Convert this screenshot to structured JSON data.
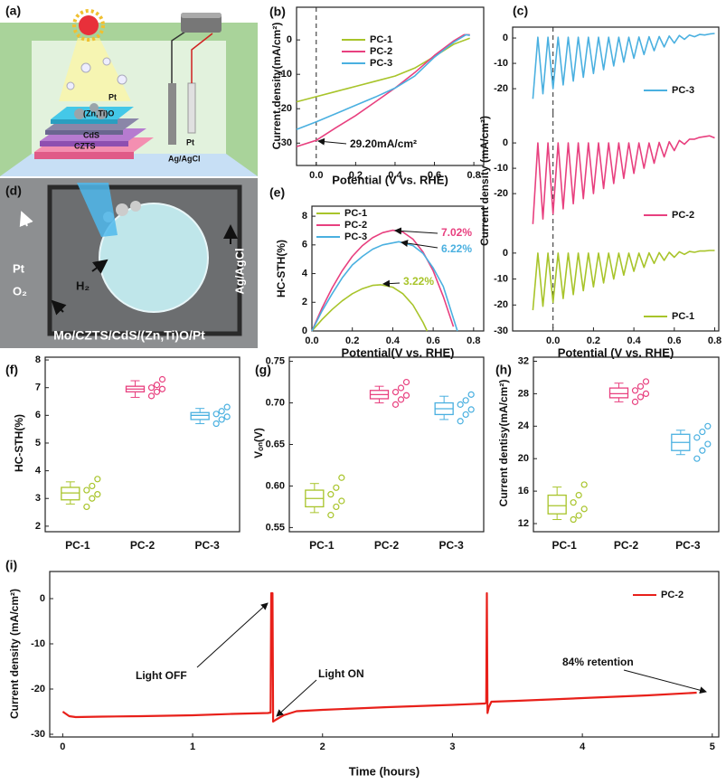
{
  "figure_a": {
    "panel_label": "(a)",
    "labels": [
      "Pt",
      "(Zn,Ti)O",
      "CdS",
      "CZTS",
      "Pt",
      "Ag/AgCl"
    ]
  },
  "figure_d": {
    "panel_label": "(d)",
    "labels": [
      "Pt",
      "H₂",
      "O₂",
      "Ag/AgCl",
      "Mo/CZTS/CdS/(Zn,Ti)O/Pt"
    ]
  },
  "chart_data": [
    {
      "type": "line",
      "panel_label": "(b)",
      "xlabel": "Potential (V vs. RHE)",
      "ylabel": "Current density(mA/cm²)",
      "xlim": [
        -0.1,
        0.85
      ],
      "ylim": [
        -36.5,
        9.5
      ],
      "xticks": [
        {
          "value": 0,
          "label": "0.0"
        },
        0.2,
        0.4,
        0.6,
        0.8
      ],
      "yticks": [
        -30,
        -20,
        -10,
        0
      ],
      "ref_line_x": 0,
      "legend": "upper left",
      "series": [
        {
          "name": "PC-1",
          "color": "#a8c42a",
          "x": [
            -0.1,
            0,
            0.1,
            0.2,
            0.3,
            0.4,
            0.5,
            0.6,
            0.7,
            0.78
          ],
          "values": [
            -18,
            -16.5,
            -15,
            -13.5,
            -12,
            -10.5,
            -8.2,
            -4.8,
            -1.2,
            0.5
          ]
        },
        {
          "name": "PC-2",
          "color": "#e8407f",
          "x": [
            -0.1,
            0,
            0.1,
            0.2,
            0.3,
            0.4,
            0.5,
            0.6,
            0.7,
            0.75,
            0.78
          ],
          "values": [
            -31,
            -29.2,
            -25.5,
            -22,
            -18,
            -14,
            -9.5,
            -4.5,
            -0.2,
            1.5,
            1.5
          ]
        },
        {
          "name": "PC-3",
          "color": "#4ab0e0",
          "x": [
            -0.1,
            0,
            0.1,
            0.2,
            0.3,
            0.4,
            0.5,
            0.6,
            0.7,
            0.76,
            0.78
          ],
          "values": [
            -26,
            -23.8,
            -21.4,
            -19,
            -16.6,
            -14,
            -10.5,
            -5,
            -0.6,
            1.5,
            1.3
          ]
        }
      ],
      "annotations": [
        {
          "text": "29.20mA/cm²"
        }
      ]
    },
    {
      "type": "line",
      "panel_label": "(e)",
      "xlabel": "Potential(V vs. RHE)",
      "ylabel": "HC-STH(%)",
      "xlim": [
        0,
        0.85
      ],
      "ylim": [
        0,
        8.7
      ],
      "xticks": [
        {
          "value": 0,
          "label": "0.0"
        },
        0.2,
        0.4,
        0.6,
        0.8
      ],
      "yticks": [
        0,
        2,
        4,
        6,
        8
      ],
      "legend": "upper left",
      "series": [
        {
          "name": "PC-1",
          "color": "#a8c42a",
          "x": [
            0,
            0.05,
            0.1,
            0.15,
            0.2,
            0.25,
            0.3,
            0.34,
            0.4,
            0.45,
            0.5,
            0.55,
            0.57
          ],
          "values": [
            0,
            0.8,
            1.5,
            2.1,
            2.6,
            2.95,
            3.18,
            3.22,
            3.05,
            2.6,
            1.8,
            0.6,
            0
          ]
        },
        {
          "name": "PC-2",
          "color": "#e8407f",
          "x": [
            0,
            0.05,
            0.1,
            0.15,
            0.2,
            0.25,
            0.3,
            0.35,
            0.4,
            0.45,
            0.5,
            0.55,
            0.6,
            0.65,
            0.7
          ],
          "values": [
            0,
            1.6,
            3,
            4.2,
            5.2,
            5.95,
            6.5,
            6.85,
            7.02,
            6.9,
            6.4,
            5.5,
            4.2,
            2.4,
            0.3
          ]
        },
        {
          "name": "PC-3",
          "color": "#4ab0e0",
          "x": [
            0,
            0.05,
            0.1,
            0.15,
            0.2,
            0.25,
            0.3,
            0.35,
            0.43,
            0.5,
            0.55,
            0.6,
            0.65,
            0.72
          ],
          "values": [
            0,
            1.4,
            2.6,
            3.7,
            4.6,
            5.2,
            5.7,
            6.0,
            6.22,
            5.95,
            5.4,
            4.4,
            3.1,
            0
          ]
        }
      ],
      "annotations": [
        {
          "text": "7.02%",
          "color": "#e8407f"
        },
        {
          "text": "6.22%",
          "color": "#4ab0e0"
        },
        {
          "text": "3.22%",
          "color": "#a8c42a"
        }
      ]
    },
    {
      "type": "line",
      "panel_label": "(c)",
      "xlim": [
        -0.2,
        0.82
      ],
      "ylim": [
        -29.6,
        4.3
      ],
      "yticks": [
        -20,
        -10,
        0
      ],
      "ref_line_x": 0,
      "legend": "right",
      "x": [
        -0.1,
        -0.075,
        -0.05,
        -0.025,
        0,
        0.025,
        0.05,
        0.075,
        0.1,
        0.125,
        0.15,
        0.175,
        0.2,
        0.225,
        0.25,
        0.275,
        0.3,
        0.325,
        0.35,
        0.375,
        0.4,
        0.425,
        0.45,
        0.475,
        0.5,
        0.525,
        0.55,
        0.575,
        0.6,
        0.625,
        0.65,
        0.675,
        0.7,
        0.725,
        0.75,
        0.775,
        0.8
      ],
      "series": [
        {
          "name": "PC-3",
          "color": "#4ab0e0",
          "values": [
            -24,
            0.3,
            -22,
            0.3,
            -20,
            0.3,
            -18.5,
            0.3,
            -17,
            0.3,
            -15.5,
            0.3,
            -14,
            0.3,
            -12.5,
            0.3,
            -11,
            0.3,
            -9.5,
            0.3,
            -8,
            0.4,
            -6.5,
            0.5,
            -5,
            0.6,
            -3.5,
            0.8,
            -2,
            1,
            -0.5,
            1.2,
            0.5,
            1.4,
            1.2,
            1.6,
            1.8
          ]
        }
      ]
    },
    {
      "type": "line",
      "ylabel": "Current density (mA/cm²)",
      "xlim": [
        -0.2,
        0.82
      ],
      "ylim": [
        -32.8,
        11.8
      ],
      "yticks": [
        -20,
        -10,
        0
      ],
      "ref_line_x": 0,
      "legend": "right",
      "x": [
        -0.1,
        -0.075,
        -0.05,
        -0.025,
        0,
        0.025,
        0.05,
        0.075,
        0.1,
        0.125,
        0.15,
        0.175,
        0.2,
        0.225,
        0.25,
        0.275,
        0.3,
        0.325,
        0.35,
        0.375,
        0.4,
        0.425,
        0.45,
        0.475,
        0.5,
        0.525,
        0.55,
        0.575,
        0.6,
        0.625,
        0.65,
        0.675,
        0.7,
        0.725,
        0.75,
        0.775,
        0.8
      ],
      "series": [
        {
          "name": "PC-2",
          "color": "#e8407f",
          "values": [
            -32,
            0,
            -30,
            0,
            -28,
            0,
            -26,
            0,
            -24,
            0,
            -22,
            0,
            -20,
            0,
            -18,
            0,
            -16,
            0,
            -14,
            0,
            -12,
            0,
            -10,
            0,
            -8,
            0.2,
            -5.5,
            0.5,
            -3,
            1,
            -0.5,
            1.5,
            1.5,
            2.2,
            2.5,
            2.8,
            2
          ]
        }
      ]
    },
    {
      "type": "line",
      "xlabel": "Potential (V vs. RHE)",
      "xlim": [
        -0.2,
        0.82
      ],
      "ylim": [
        -30,
        10.4
      ],
      "xticks": [
        {
          "value": 0,
          "label": "0.0"
        },
        0.2,
        0.4,
        0.6,
        0.8
      ],
      "yticks": [
        -30,
        -20,
        -10,
        0
      ],
      "ref_line_x": 0,
      "legend": "right",
      "x": [
        -0.1,
        -0.075,
        -0.05,
        -0.025,
        0,
        0.025,
        0.05,
        0.075,
        0.1,
        0.125,
        0.15,
        0.175,
        0.2,
        0.225,
        0.25,
        0.275,
        0.3,
        0.325,
        0.35,
        0.375,
        0.4,
        0.425,
        0.45,
        0.475,
        0.5,
        0.525,
        0.55,
        0.575,
        0.6,
        0.625,
        0.65,
        0.675,
        0.7,
        0.725,
        0.75,
        0.775,
        0.8
      ],
      "series": [
        {
          "name": "PC-1",
          "color": "#a8c42a",
          "values": [
            -22,
            0,
            -20.5,
            0,
            -19,
            0,
            -17.5,
            0,
            -16,
            0,
            -14.5,
            0,
            -13,
            0,
            -11.5,
            0,
            -10,
            0,
            -8.5,
            0,
            -7,
            0,
            -5.5,
            0.1,
            -4,
            0.2,
            -2.8,
            0.3,
            -1.6,
            0.5,
            -0.5,
            0.6,
            0.3,
            0.8,
            0.8,
            1,
            1
          ]
        }
      ]
    },
    {
      "type": "box",
      "panel_label": "(f)",
      "ylabel": "HC-STH(%)",
      "ylim": [
        1.8,
        8.1
      ],
      "yticks": [
        2,
        3,
        4,
        5,
        6,
        7,
        8
      ],
      "categories": [
        "PC-1",
        "PC-2",
        "PC-3"
      ],
      "colors": [
        "#a8c42a",
        "#e8407f",
        "#4ab0e0"
      ],
      "boxes": [
        {
          "min": 2.8,
          "q1": 2.95,
          "median": 3.2,
          "q3": 3.4,
          "max": 3.6,
          "points": [
            2.7,
            3.0,
            3.15,
            3.3,
            3.45,
            3.7
          ]
        },
        {
          "min": 6.65,
          "q1": 6.85,
          "median": 6.95,
          "q3": 7.05,
          "max": 7.25,
          "points": [
            6.7,
            6.85,
            6.95,
            7.0,
            7.1,
            7.3
          ]
        },
        {
          "min": 5.7,
          "q1": 5.85,
          "median": 6.0,
          "q3": 6.1,
          "max": 6.25,
          "points": [
            5.7,
            5.85,
            5.95,
            6.05,
            6.15,
            6.3
          ]
        }
      ]
    },
    {
      "type": "box",
      "panel_label": "(g)",
      "ylabel": "Vₒₙ(V)",
      "ylim": [
        0.545,
        0.755
      ],
      "yticks": [
        0.55,
        {
          "value": 0.6,
          "label": "0.60"
        },
        0.65,
        {
          "value": 0.7,
          "label": "0.70"
        },
        0.75
      ],
      "categories": [
        "PC-1",
        "PC-2",
        "PC-3"
      ],
      "colors": [
        "#a8c42a",
        "#e8407f",
        "#4ab0e0"
      ],
      "boxes": [
        {
          "min": 0.568,
          "q1": 0.575,
          "median": 0.585,
          "q3": 0.595,
          "max": 0.603,
          "points": [
            0.565,
            0.575,
            0.582,
            0.59,
            0.598,
            0.61
          ]
        },
        {
          "min": 0.7,
          "q1": 0.705,
          "median": 0.71,
          "q3": 0.715,
          "max": 0.72,
          "points": [
            0.698,
            0.704,
            0.709,
            0.713,
            0.718,
            0.725
          ]
        },
        {
          "min": 0.68,
          "q1": 0.686,
          "median": 0.693,
          "q3": 0.7,
          "max": 0.708,
          "points": [
            0.678,
            0.686,
            0.692,
            0.698,
            0.703,
            0.71
          ]
        }
      ]
    },
    {
      "type": "box",
      "panel_label": "(h)",
      "ylabel": "Current dentisy(mA/cm²)",
      "ylim": [
        11,
        32.5
      ],
      "yticks": [
        12,
        16,
        20,
        24,
        28,
        32
      ],
      "categories": [
        "PC-1",
        "PC-2",
        "PC-3"
      ],
      "colors": [
        "#a8c42a",
        "#e8407f",
        "#4ab0e0"
      ],
      "boxes": [
        {
          "min": 12.5,
          "q1": 13.2,
          "median": 14.2,
          "q3": 15.5,
          "max": 16.5,
          "points": [
            12.5,
            13,
            13.8,
            14.6,
            15.5,
            16.8
          ]
        },
        {
          "min": 27,
          "q1": 27.5,
          "median": 28,
          "q3": 28.7,
          "max": 29.3,
          "points": [
            27,
            27.6,
            28,
            28.4,
            28.9,
            29.5
          ]
        },
        {
          "min": 20.5,
          "q1": 21,
          "median": 22,
          "q3": 23,
          "max": 23.5,
          "points": [
            20,
            21,
            21.8,
            22.6,
            23.3,
            24
          ]
        }
      ]
    },
    {
      "type": "line",
      "panel_label": "(i)",
      "xlabel": "Time (hours)",
      "ylabel": "Current density (mA/cm²)",
      "xlim": [
        -0.1,
        5.05
      ],
      "ylim": [
        -30.6,
        6
      ],
      "xticks": [
        0,
        1,
        2,
        3,
        4,
        5
      ],
      "yticks": [
        -30,
        -20,
        -10,
        0
      ],
      "legend": "upper right",
      "series": [
        {
          "name": "PC-2",
          "color": "#e8201a",
          "x": [
            0,
            0.05,
            0.1,
            0.3,
            0.6,
            1.0,
            1.3,
            1.58,
            1.6,
            1.605,
            1.615,
            1.62,
            1.64,
            1.7,
            1.8,
            2.0,
            2.5,
            3.0,
            3.25,
            3.26,
            3.265,
            3.27,
            3.28,
            3.3,
            3.5,
            4.0,
            4.5,
            4.88
          ],
          "values": [
            -25,
            -26,
            -26.2,
            -26.1,
            -26,
            -25.8,
            -25.5,
            -25.3,
            -25.2,
            1.2,
            1.2,
            -27.2,
            -26.8,
            -25.8,
            -24.9,
            -24.6,
            -24,
            -23.5,
            -23.2,
            -23.1,
            1.2,
            -25.3,
            -24,
            -22.8,
            -22.6,
            -22,
            -21.4,
            -20.8
          ]
        }
      ],
      "annotations": [
        {
          "text": "Light OFF"
        },
        {
          "text": "Light ON"
        },
        {
          "text": "84% retention"
        }
      ]
    }
  ]
}
